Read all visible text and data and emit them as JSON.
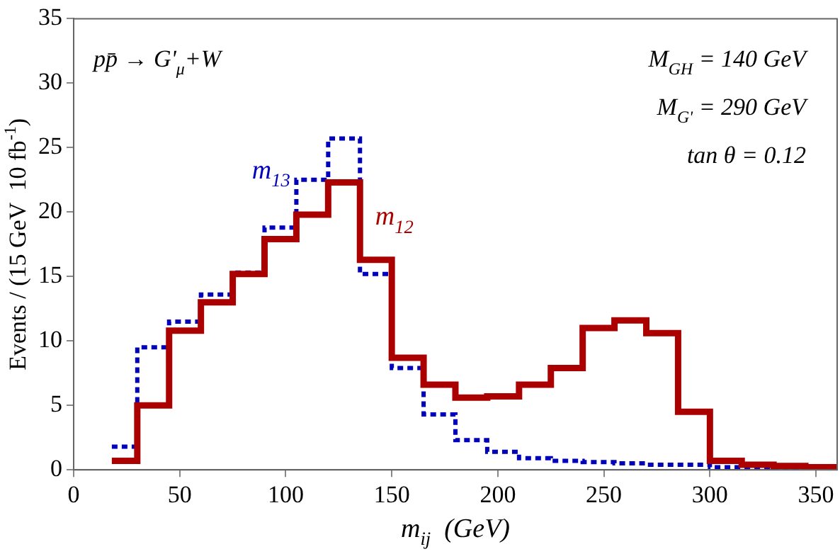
{
  "chart_data": {
    "type": "histogram",
    "xlabel": "m$_{ij}$  (GeV)",
    "ylabel": "Events / (15 GeV  10 fb$^{-1}$)",
    "annotations": [
      "pp̄ → G'$_{μ}$+W",
      "M$_{GH}$ = 140 GeV",
      "M$_{G'}$ = 290 GeV",
      "tan θ = 0.12"
    ],
    "bins": [
      18,
      30,
      45,
      60,
      75,
      90,
      105,
      120,
      135,
      150,
      165,
      180,
      195,
      210,
      225,
      240,
      255,
      270,
      285,
      300,
      315,
      330,
      345,
      360
    ],
    "series": [
      {
        "name": "m$_{12}$",
        "color": "#aa0000",
        "line_style": "solid",
        "values": [
          0.7,
          5.0,
          10.8,
          13.0,
          15.2,
          17.9,
          19.8,
          22.3,
          16.3,
          8.7,
          6.6,
          5.6,
          5.7,
          6.6,
          7.9,
          11.0,
          11.6,
          10.6,
          4.5,
          0.7,
          0.4,
          0.3,
          0.2
        ]
      },
      {
        "name": "m$_{13}$",
        "color": "#0000bb",
        "line_style": "dotted",
        "values": [
          1.8,
          9.5,
          11.5,
          13.6,
          15.3,
          18.8,
          22.5,
          25.7,
          15.2,
          7.9,
          4.3,
          2.3,
          1.4,
          0.9,
          0.7,
          0.6,
          0.5,
          0.4,
          0.4,
          0.2,
          0.2,
          0.1,
          0.1
        ]
      }
    ],
    "xlim": [
      0,
      360
    ],
    "ylim": [
      0,
      35
    ],
    "xticks": [
      0,
      50,
      100,
      150,
      200,
      250,
      300,
      350
    ],
    "yticks": [
      0,
      5,
      10,
      15,
      20,
      25,
      30,
      35
    ],
    "grid": false,
    "legend": false
  }
}
